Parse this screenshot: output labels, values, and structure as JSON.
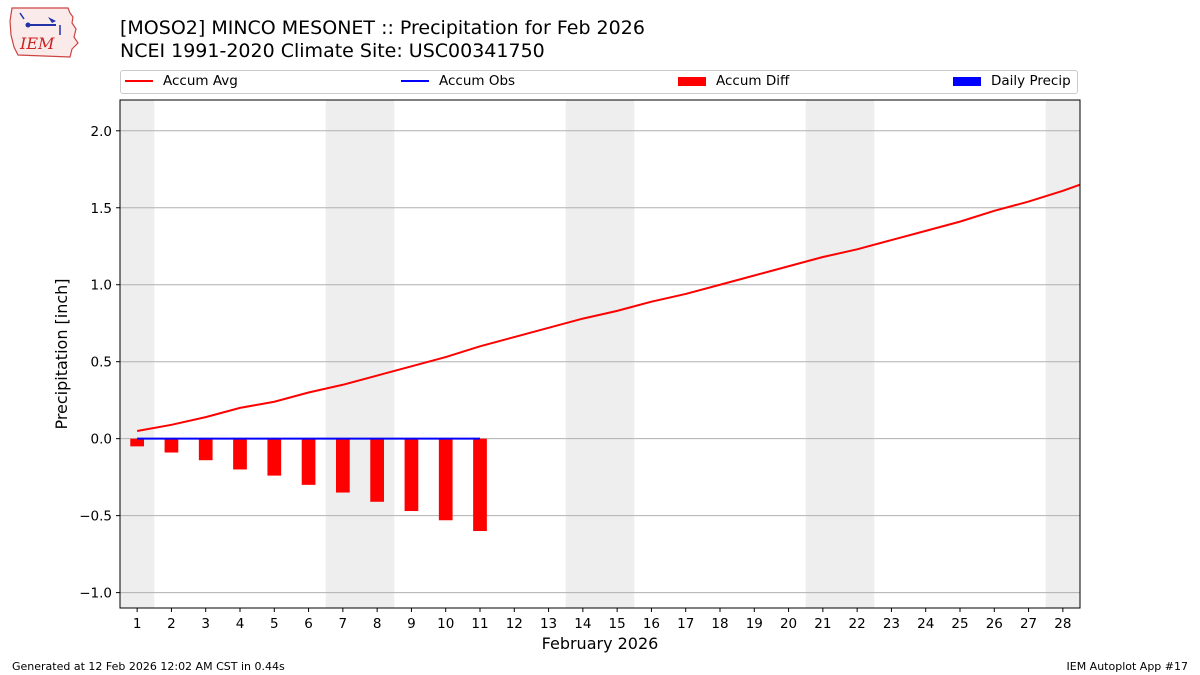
{
  "header": {
    "title_line1": "[MOSO2] MINCO MESONET :: Precipitation for Feb 2026",
    "title_line2": "NCEI 1991-2020 Climate Site: USC00341750",
    "logo_text": "IEM"
  },
  "legend": {
    "placement": "top, above plot",
    "items": [
      {
        "label": "Accum Avg",
        "kind": "line",
        "color": "#ff0000"
      },
      {
        "label": "Accum Obs",
        "kind": "line",
        "color": "#0000ff"
      },
      {
        "label": "Accum Diff",
        "kind": "box",
        "color": "#ff0000"
      },
      {
        "label": "Daily Precip",
        "kind": "box",
        "color": "#0000ff"
      }
    ]
  },
  "footer": {
    "left": "Generated at 12 Feb 2026 12:02 AM CST in 0.44s",
    "right": "IEM Autoplot App #17"
  },
  "colors": {
    "avg": "#ff0000",
    "obs": "#0000ff",
    "diff": "#ff0000",
    "daily": "#0000ff",
    "weekend": "#eeeeee",
    "grid": "#b0b0b0"
  },
  "chart_data": {
    "type": "line",
    "xlabel": "February 2026",
    "ylabel": "Precipitation [inch]",
    "xlim": [
      0.5,
      28.5
    ],
    "ylim": [
      -1.1,
      2.2
    ],
    "yticks": [
      -1.0,
      -0.5,
      0.0,
      0.5,
      1.0,
      1.5,
      2.0
    ],
    "ytick_labels": [
      "−1.0",
      "−0.5",
      "0.0",
      "0.5",
      "1.0",
      "1.5",
      "2.0"
    ],
    "grid": "horizontal",
    "x_days": [
      1,
      2,
      3,
      4,
      5,
      6,
      7,
      8,
      9,
      10,
      11,
      12,
      13,
      14,
      15,
      16,
      17,
      18,
      19,
      20,
      21,
      22,
      23,
      24,
      25,
      26,
      27,
      28
    ],
    "weekend_spans": [
      [
        0.5,
        1.5
      ],
      [
        6.5,
        8.5
      ],
      [
        13.5,
        15.5
      ],
      [
        20.5,
        22.5
      ],
      [
        27.5,
        28.5
      ]
    ],
    "series": [
      {
        "name": "Accum Avg",
        "type": "line",
        "x": [
          1,
          2,
          3,
          4,
          5,
          6,
          7,
          8,
          9,
          10,
          11,
          12,
          13,
          14,
          15,
          16,
          17,
          18,
          19,
          20,
          21,
          22,
          23,
          24,
          25,
          26,
          27,
          28,
          28.5
        ],
        "values": [
          0.05,
          0.09,
          0.14,
          0.2,
          0.24,
          0.3,
          0.35,
          0.41,
          0.47,
          0.53,
          0.6,
          0.66,
          0.72,
          0.78,
          0.83,
          0.89,
          0.94,
          1.0,
          1.06,
          1.12,
          1.18,
          1.23,
          1.29,
          1.35,
          1.41,
          1.48,
          1.54,
          1.61,
          1.65
        ]
      },
      {
        "name": "Accum Obs",
        "type": "line",
        "x": [
          1,
          2,
          3,
          4,
          5,
          6,
          7,
          8,
          9,
          10,
          11
        ],
        "values": [
          0,
          0,
          0,
          0,
          0,
          0,
          0,
          0,
          0,
          0,
          0
        ]
      },
      {
        "name": "Accum Diff",
        "type": "bar",
        "x": [
          1,
          2,
          3,
          4,
          5,
          6,
          7,
          8,
          9,
          10,
          11
        ],
        "values": [
          -0.05,
          -0.09,
          -0.14,
          -0.2,
          -0.24,
          -0.3,
          -0.35,
          -0.41,
          -0.47,
          -0.53,
          -0.6
        ]
      },
      {
        "name": "Daily Precip",
        "type": "bar",
        "x": [
          1,
          2,
          3,
          4,
          5,
          6,
          7,
          8,
          9,
          10,
          11
        ],
        "values": [
          0,
          0,
          0,
          0,
          0,
          0,
          0,
          0,
          0,
          0,
          0
        ]
      }
    ]
  }
}
